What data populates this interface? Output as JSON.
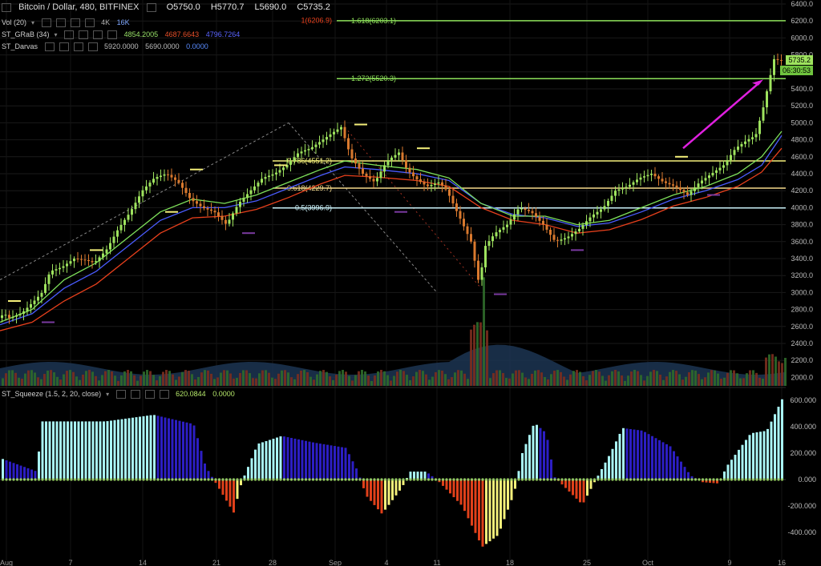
{
  "header": {
    "symbol": "Bitcoin / Dollar, 480, BITFINEX",
    "open": "O5750.0",
    "high": "H5770.7",
    "low": "L5690.0",
    "close": "C5735.2"
  },
  "indicators": {
    "vol": {
      "label": "Vol (20)",
      "v1": "4K",
      "v2": "16K"
    },
    "grab": {
      "label": "ST_GRaB (34)",
      "v1": "4854.2005",
      "v2": "4687.6643",
      "v3": "4796.7264"
    },
    "darvas": {
      "label": "ST_Darvas",
      "v1": "5920.0000",
      "v2": "5690.0000",
      "v3": "0.0000"
    },
    "squeeze": {
      "label": "ST_Squeeze (1.5, 2, 20, close)",
      "v1": "620.0844",
      "v2": "0.0000"
    }
  },
  "price_tags": {
    "last": "5735.2",
    "timer": "06:30:53"
  },
  "colors": {
    "bull": "#9ee35e",
    "bear": "#d9792e",
    "ema_green": "#7ee05a",
    "ema_blue": "#4a5cff",
    "ema_red": "#e8401c",
    "fib_green": "#8de05a",
    "fib_yellow": "#f5f07a",
    "fib_tan": "#f5d98a",
    "fib_cyan": "#c9f0f8",
    "arrow": "#e020e0",
    "sq_cyan": "#a9f4f4",
    "sq_blue": "#2c1ec4",
    "sq_red": "#e0401a",
    "sq_yellow": "#f4f07a"
  },
  "chart_data": {
    "type": "candlestick",
    "xlabels": [
      "Aug",
      "7",
      "14",
      "21",
      "28",
      "Sep",
      "4",
      "11",
      "18",
      "25",
      "Oct",
      "9",
      "16"
    ],
    "price_axis": [
      6400,
      6200,
      6000,
      5800,
      5600,
      5400,
      5200,
      5000,
      4800,
      4600,
      4400,
      4200,
      4000,
      3800,
      3600,
      3400,
      3200,
      3000,
      2800,
      2600,
      2400,
      2200,
      2000
    ],
    "ylim": [
      1900,
      6400
    ],
    "fib_levels": [
      {
        "label": "1.618(6203.1)",
        "value": 6203.1,
        "color": "fib_green"
      },
      {
        "label": "1(6206.9)",
        "value": 6206.9,
        "color": "ema_red"
      },
      {
        "label": "1.272(5520.3)",
        "value": 5520.3,
        "color": "fib_green"
      },
      {
        "label": "0.786(4551.2)",
        "value": 4551.2,
        "color": "fib_yellow"
      },
      {
        "label": "0.618(4229.7)",
        "value": 4229.7,
        "color": "fib_tan"
      },
      {
        "label": "0.5(3996.9)",
        "value": 3996.9,
        "color": "fib_cyan"
      }
    ],
    "price_path": [
      [
        0,
        2700
      ],
      [
        8,
        2750
      ],
      [
        14,
        2700
      ],
      [
        20,
        2720
      ],
      [
        30,
        2760
      ],
      [
        45,
        2900
      ],
      [
        55,
        3000
      ],
      [
        65,
        3250
      ],
      [
        80,
        3300
      ],
      [
        95,
        3400
      ],
      [
        110,
        3380
      ],
      [
        120,
        3350
      ],
      [
        135,
        3500
      ],
      [
        150,
        3750
      ],
      [
        165,
        3950
      ],
      [
        180,
        4200
      ],
      [
        195,
        4350
      ],
      [
        210,
        4400
      ],
      [
        225,
        4300
      ],
      [
        240,
        4100
      ],
      [
        255,
        4000
      ],
      [
        270,
        3950
      ],
      [
        285,
        3800
      ],
      [
        300,
        4050
      ],
      [
        315,
        4200
      ],
      [
        330,
        4350
      ],
      [
        345,
        4400
      ],
      [
        360,
        4500
      ],
      [
        375,
        4650
      ],
      [
        390,
        4700
      ],
      [
        405,
        4800
      ],
      [
        420,
        4900
      ],
      [
        428,
        4950
      ],
      [
        440,
        4600
      ],
      [
        455,
        4400
      ],
      [
        470,
        4300
      ],
      [
        485,
        4550
      ],
      [
        500,
        4650
      ],
      [
        510,
        4450
      ],
      [
        520,
        4350
      ],
      [
        535,
        4250
      ],
      [
        550,
        4300
      ],
      [
        560,
        4200
      ],
      [
        575,
        3900
      ],
      [
        590,
        3600
      ],
      [
        600,
        3100
      ],
      [
        608,
        3550
      ],
      [
        620,
        3700
      ],
      [
        635,
        3800
      ],
      [
        650,
        4000
      ],
      [
        665,
        3950
      ],
      [
        680,
        3800
      ],
      [
        695,
        3600
      ],
      [
        710,
        3650
      ],
      [
        725,
        3750
      ],
      [
        740,
        3900
      ],
      [
        755,
        4000
      ],
      [
        770,
        4200
      ],
      [
        785,
        4250
      ],
      [
        800,
        4350
      ],
      [
        815,
        4400
      ],
      [
        830,
        4300
      ],
      [
        845,
        4250
      ],
      [
        860,
        4150
      ],
      [
        875,
        4300
      ],
      [
        890,
        4400
      ],
      [
        905,
        4500
      ],
      [
        920,
        4700
      ],
      [
        935,
        4800
      ],
      [
        945,
        4850
      ],
      [
        955,
        5200
      ],
      [
        962,
        5500
      ],
      [
        968,
        5750
      ],
      [
        975,
        5735
      ]
    ],
    "ema_green": [
      [
        0,
        2650
      ],
      [
        40,
        2800
      ],
      [
        80,
        3150
      ],
      [
        120,
        3350
      ],
      [
        160,
        3650
      ],
      [
        200,
        3950
      ],
      [
        240,
        4100
      ],
      [
        280,
        4050
      ],
      [
        320,
        4150
      ],
      [
        360,
        4300
      ],
      [
        400,
        4450
      ],
      [
        430,
        4550
      ],
      [
        470,
        4500
      ],
      [
        520,
        4450
      ],
      [
        560,
        4350
      ],
      [
        600,
        4050
      ],
      [
        640,
        3900
      ],
      [
        680,
        3900
      ],
      [
        720,
        3800
      ],
      [
        760,
        3850
      ],
      [
        800,
        4000
      ],
      [
        840,
        4150
      ],
      [
        880,
        4250
      ],
      [
        920,
        4400
      ],
      [
        950,
        4600
      ],
      [
        975,
        4900
      ]
    ],
    "ema_blue": [
      [
        0,
        2620
      ],
      [
        40,
        2750
      ],
      [
        80,
        3050
      ],
      [
        120,
        3250
      ],
      [
        160,
        3550
      ],
      [
        200,
        3850
      ],
      [
        240,
        4000
      ],
      [
        280,
        4000
      ],
      [
        320,
        4080
      ],
      [
        360,
        4230
      ],
      [
        400,
        4380
      ],
      [
        430,
        4480
      ],
      [
        470,
        4450
      ],
      [
        520,
        4400
      ],
      [
        560,
        4320
      ],
      [
        600,
        4050
      ],
      [
        640,
        3920
      ],
      [
        680,
        3880
      ],
      [
        720,
        3780
      ],
      [
        760,
        3820
      ],
      [
        800,
        3950
      ],
      [
        840,
        4100
      ],
      [
        880,
        4200
      ],
      [
        920,
        4330
      ],
      [
        950,
        4500
      ],
      [
        975,
        4850
      ]
    ],
    "ema_red": [
      [
        0,
        2550
      ],
      [
        40,
        2650
      ],
      [
        80,
        2900
      ],
      [
        120,
        3100
      ],
      [
        160,
        3400
      ],
      [
        200,
        3700
      ],
      [
        240,
        3880
      ],
      [
        280,
        3900
      ],
      [
        320,
        3980
      ],
      [
        360,
        4120
      ],
      [
        400,
        4280
      ],
      [
        430,
        4380
      ],
      [
        470,
        4360
      ],
      [
        520,
        4320
      ],
      [
        560,
        4250
      ],
      [
        600,
        4000
      ],
      [
        640,
        3850
      ],
      [
        680,
        3800
      ],
      [
        720,
        3700
      ],
      [
        760,
        3740
      ],
      [
        800,
        3860
      ],
      [
        840,
        4020
      ],
      [
        880,
        4120
      ],
      [
        920,
        4250
      ],
      [
        950,
        4420
      ],
      [
        975,
        4700
      ]
    ],
    "volume_area_peak": 18000,
    "squeeze_axis": [
      600,
      400,
      200,
      0,
      -200,
      -400
    ],
    "squeeze_last": 620.0844
  }
}
